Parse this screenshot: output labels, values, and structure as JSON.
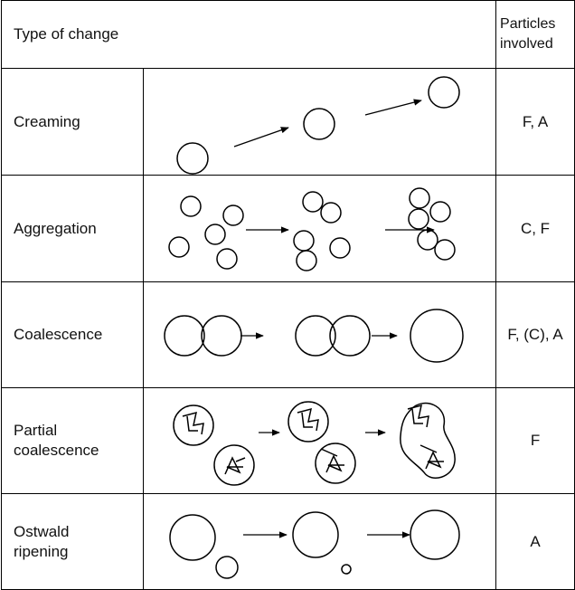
{
  "table": {
    "header": [
      "Type of change",
      "Particles involved"
    ],
    "rows": [
      [
        "Creaming",
        "F, A"
      ],
      [
        "Aggregation",
        "C, F"
      ],
      [
        "Coalescence",
        "F, (C), A"
      ],
      [
        "Partial coalescence",
        "F"
      ],
      [
        "Ostwald ripening",
        "A"
      ]
    ]
  }
}
